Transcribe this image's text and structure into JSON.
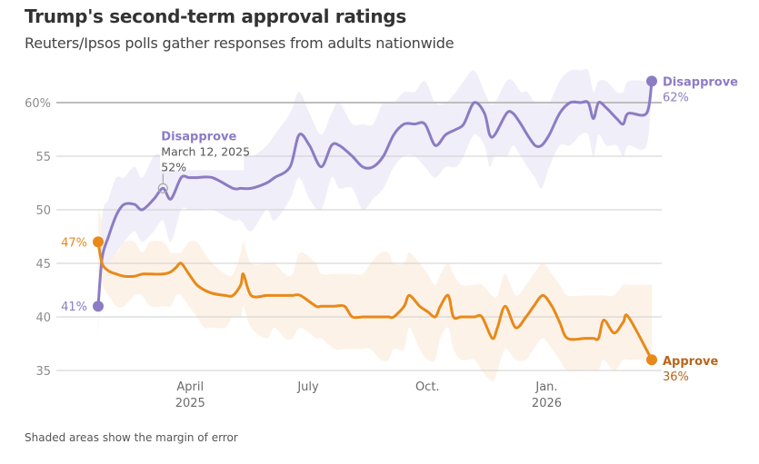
{
  "header": {
    "title": "Trump's second-term approval ratings",
    "subtitle": "Reuters/Ipsos polls gather responses from adults nationwide"
  },
  "footnote": "Shaded areas show the margin of error",
  "colors": {
    "disapprove": "#8b7cc4",
    "disapprove_band": "#efedf8",
    "approve": "#e8891a",
    "approve_band": "#fdf1e4",
    "approve_label": "#b8651a"
  },
  "chart_data": {
    "type": "line",
    "title": "Trump's second-term approval ratings",
    "xlabel": "",
    "ylabel": "",
    "x_unit": "days since Jan. 20, 2025",
    "ylim": [
      35,
      62
    ],
    "yticks": [
      {
        "value": 35,
        "label": "35"
      },
      {
        "value": 40,
        "label": "40"
      },
      {
        "value": 45,
        "label": "45"
      },
      {
        "value": 50,
        "label": "50"
      },
      {
        "value": 55,
        "label": "55"
      },
      {
        "value": 60,
        "label": "60%"
      }
    ],
    "xlim": [
      0,
      427
    ],
    "xticks": [
      {
        "value": 71,
        "label": "April",
        "sublabel": "2025"
      },
      {
        "value": 162,
        "label": "July",
        "sublabel": ""
      },
      {
        "value": 254,
        "label": "Oct.",
        "sublabel": ""
      },
      {
        "value": 346,
        "label": "Jan.",
        "sublabel": "2026"
      }
    ],
    "grid": true,
    "series": [
      {
        "name": "Disapprove",
        "end_label": "Disapprove",
        "end_value_label": "62%",
        "start_value_label": "41%",
        "x": [
          0,
          3,
          8,
          14,
          20,
          28,
          34,
          43,
          50,
          56,
          64,
          70,
          76,
          88,
          104,
          110,
          118,
          130,
          136,
          148,
          155,
          163,
          172,
          180,
          186,
          196,
          204,
          212,
          220,
          228,
          236,
          244,
          252,
          260,
          268,
          276,
          282,
          290,
          298,
          302,
          306,
          315,
          320,
          326,
          331,
          337,
          342,
          348,
          356,
          364,
          372,
          378,
          382,
          386,
          392,
          400,
          405,
          409,
          423,
          427
        ],
        "y": [
          41,
          45.5,
          47.5,
          49.5,
          50.5,
          50.5,
          50,
          51,
          52,
          51,
          53,
          53,
          53,
          53,
          52,
          52,
          52,
          52.5,
          53,
          54,
          57,
          56,
          54,
          56,
          56,
          55,
          54,
          54,
          55,
          57,
          58,
          58,
          58,
          56,
          57,
          57.5,
          58,
          60,
          59,
          57,
          57,
          59,
          59,
          58,
          57,
          56,
          56,
          57,
          59,
          60,
          60,
          60,
          58.5,
          60,
          59.5,
          58.5,
          58,
          59,
          59,
          62
        ],
        "band_upper": [
          38,
          49,
          51,
          53,
          53,
          54,
          53,
          55,
          55,
          54,
          56,
          56,
          57,
          55,
          55,
          56,
          55,
          56,
          57,
          59,
          61,
          59,
          57,
          59,
          60,
          58,
          58,
          58,
          60,
          60,
          61,
          61,
          62,
          60,
          60,
          61,
          62,
          63,
          61,
          60,
          60,
          62,
          62,
          61,
          61,
          60,
          60,
          60,
          62,
          63,
          63,
          63,
          61,
          62,
          62,
          61,
          61,
          62,
          62,
          62
        ],
        "band_lower": [
          38,
          44,
          45,
          46,
          47,
          48,
          47,
          48,
          49,
          47,
          50,
          50,
          50,
          50,
          49,
          49,
          48,
          50,
          49,
          51,
          53,
          51,
          50,
          53,
          52,
          52,
          50,
          51,
          52,
          54,
          55,
          55,
          54,
          53,
          54,
          54,
          55,
          57,
          56,
          54,
          55,
          55,
          56,
          55,
          54,
          53,
          52,
          54,
          56,
          56,
          57,
          57,
          55,
          57,
          56,
          56,
          55,
          56,
          56,
          62
        ]
      },
      {
        "name": "Approve",
        "end_label": "Approve",
        "end_value_label": "36%",
        "start_value_label": "47%",
        "x": [
          0,
          3,
          8,
          14,
          20,
          28,
          34,
          40,
          50,
          56,
          60,
          64,
          70,
          76,
          82,
          88,
          98,
          104,
          110,
          112,
          118,
          130,
          136,
          144,
          150,
          156,
          168,
          172,
          182,
          190,
          196,
          204,
          210,
          218,
          224,
          228,
          236,
          240,
          248,
          254,
          260,
          264,
          270,
          274,
          280,
          290,
          296,
          304,
          308,
          314,
          322,
          330,
          336,
          343,
          350,
          356,
          362,
          376,
          382,
          386,
          390,
          398,
          405,
          409,
          427
        ],
        "y": [
          47,
          45,
          44.3,
          44,
          43.8,
          43.8,
          44,
          44,
          44,
          44.2,
          44.6,
          45,
          44,
          43,
          42.5,
          42.2,
          42,
          42,
          43,
          44,
          42,
          42,
          42,
          42,
          42,
          42,
          41,
          41,
          41,
          41,
          40,
          40,
          40,
          40,
          40,
          40,
          41,
          42,
          41,
          40.5,
          40,
          41,
          42,
          40,
          40,
          40,
          40,
          38,
          39,
          41,
          39,
          40,
          41,
          42,
          41,
          39.5,
          38,
          38,
          38,
          38,
          39.7,
          38.5,
          39.5,
          40,
          36
        ],
        "band_upper": [
          50,
          49,
          47,
          46,
          47,
          47,
          46,
          47,
          47,
          46,
          46,
          46,
          47,
          47,
          46,
          45,
          44,
          44,
          46,
          47,
          45,
          45,
          45,
          44,
          44,
          46,
          45,
          44,
          44,
          44,
          44,
          44,
          45,
          46,
          46,
          45,
          45,
          46,
          45,
          44,
          43,
          44,
          45,
          44,
          43,
          43,
          43,
          42,
          42,
          44,
          42,
          43,
          44,
          45,
          44,
          43,
          42,
          42,
          42,
          42,
          42,
          42,
          43,
          43,
          43
        ],
        "band_lower": [
          44,
          43,
          42,
          41,
          41,
          42,
          42,
          41,
          41,
          41,
          42,
          42,
          41,
          40,
          39,
          39,
          39,
          40,
          40,
          41,
          39,
          38,
          39,
          38,
          38,
          39,
          38,
          38,
          37,
          37,
          37,
          37,
          37,
          36,
          36,
          37,
          37,
          39,
          37,
          36,
          36,
          38,
          39,
          37,
          36,
          36,
          35,
          34,
          35,
          37,
          36,
          36,
          37,
          38,
          37,
          36,
          35,
          35,
          35,
          35,
          36,
          35,
          36,
          36,
          36
        ]
      }
    ],
    "annotations": [
      {
        "series": "Disapprove",
        "title": "Disapprove",
        "date": "March 12, 2025",
        "value_label": "52%",
        "x": 50,
        "y": 52
      }
    ]
  }
}
